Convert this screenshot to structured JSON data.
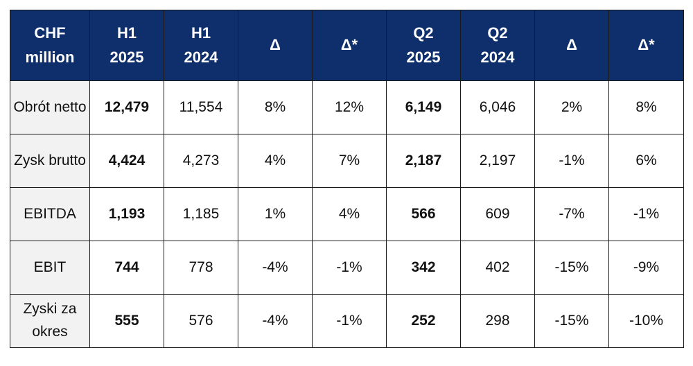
{
  "table": {
    "header": [
      {
        "line1": "CHF",
        "line2": "million"
      },
      {
        "line1": "H1",
        "line2": "2025"
      },
      {
        "line1": "H1",
        "line2": "2024"
      },
      {
        "line1": "Δ",
        "line2": ""
      },
      {
        "line1": "Δ*",
        "line2": ""
      },
      {
        "line1": "Q2",
        "line2": "2025"
      },
      {
        "line1": "Q2",
        "line2": "2024"
      },
      {
        "line1": "Δ",
        "line2": ""
      },
      {
        "line1": "Δ*",
        "line2": ""
      }
    ],
    "rows": [
      {
        "label": "Obrót netto",
        "h1_2025": "12,479",
        "h1_2024": "11,554",
        "d1": "8%",
        "d1s": "12%",
        "q2_2025": "6,149",
        "q2_2024": "6,046",
        "d2": "2%",
        "d2s": "8%"
      },
      {
        "label": "Zysk brutto",
        "h1_2025": "4,424",
        "h1_2024": "4,273",
        "d1": "4%",
        "d1s": "7%",
        "q2_2025": "2,187",
        "q2_2024": "2,197",
        "d2": "-1%",
        "d2s": "6%"
      },
      {
        "label": "EBITDA",
        "h1_2025": "1,193",
        "h1_2024": "1,185",
        "d1": "1%",
        "d1s": "4%",
        "q2_2025": "566",
        "q2_2024": "609",
        "d2": "-7%",
        "d2s": "-1%"
      },
      {
        "label": "EBIT",
        "h1_2025": "744",
        "h1_2024": "778",
        "d1": "-4%",
        "d1s": "-1%",
        "q2_2025": "342",
        "q2_2024": "402",
        "d2": "-15%",
        "d2s": "-9%"
      },
      {
        "label": "Zyski za okres",
        "h1_2025": "555",
        "h1_2024": "576",
        "d1": "-4%",
        "d1s": "-1%",
        "q2_2025": "252",
        "q2_2024": "298",
        "d2": "-15%",
        "d2s": "-10%"
      }
    ]
  },
  "colors": {
    "header_bg": "#0e2f6b",
    "header_text": "#ffffff",
    "label_bg": "#f2f2f2",
    "border": "#1a1a1a"
  }
}
